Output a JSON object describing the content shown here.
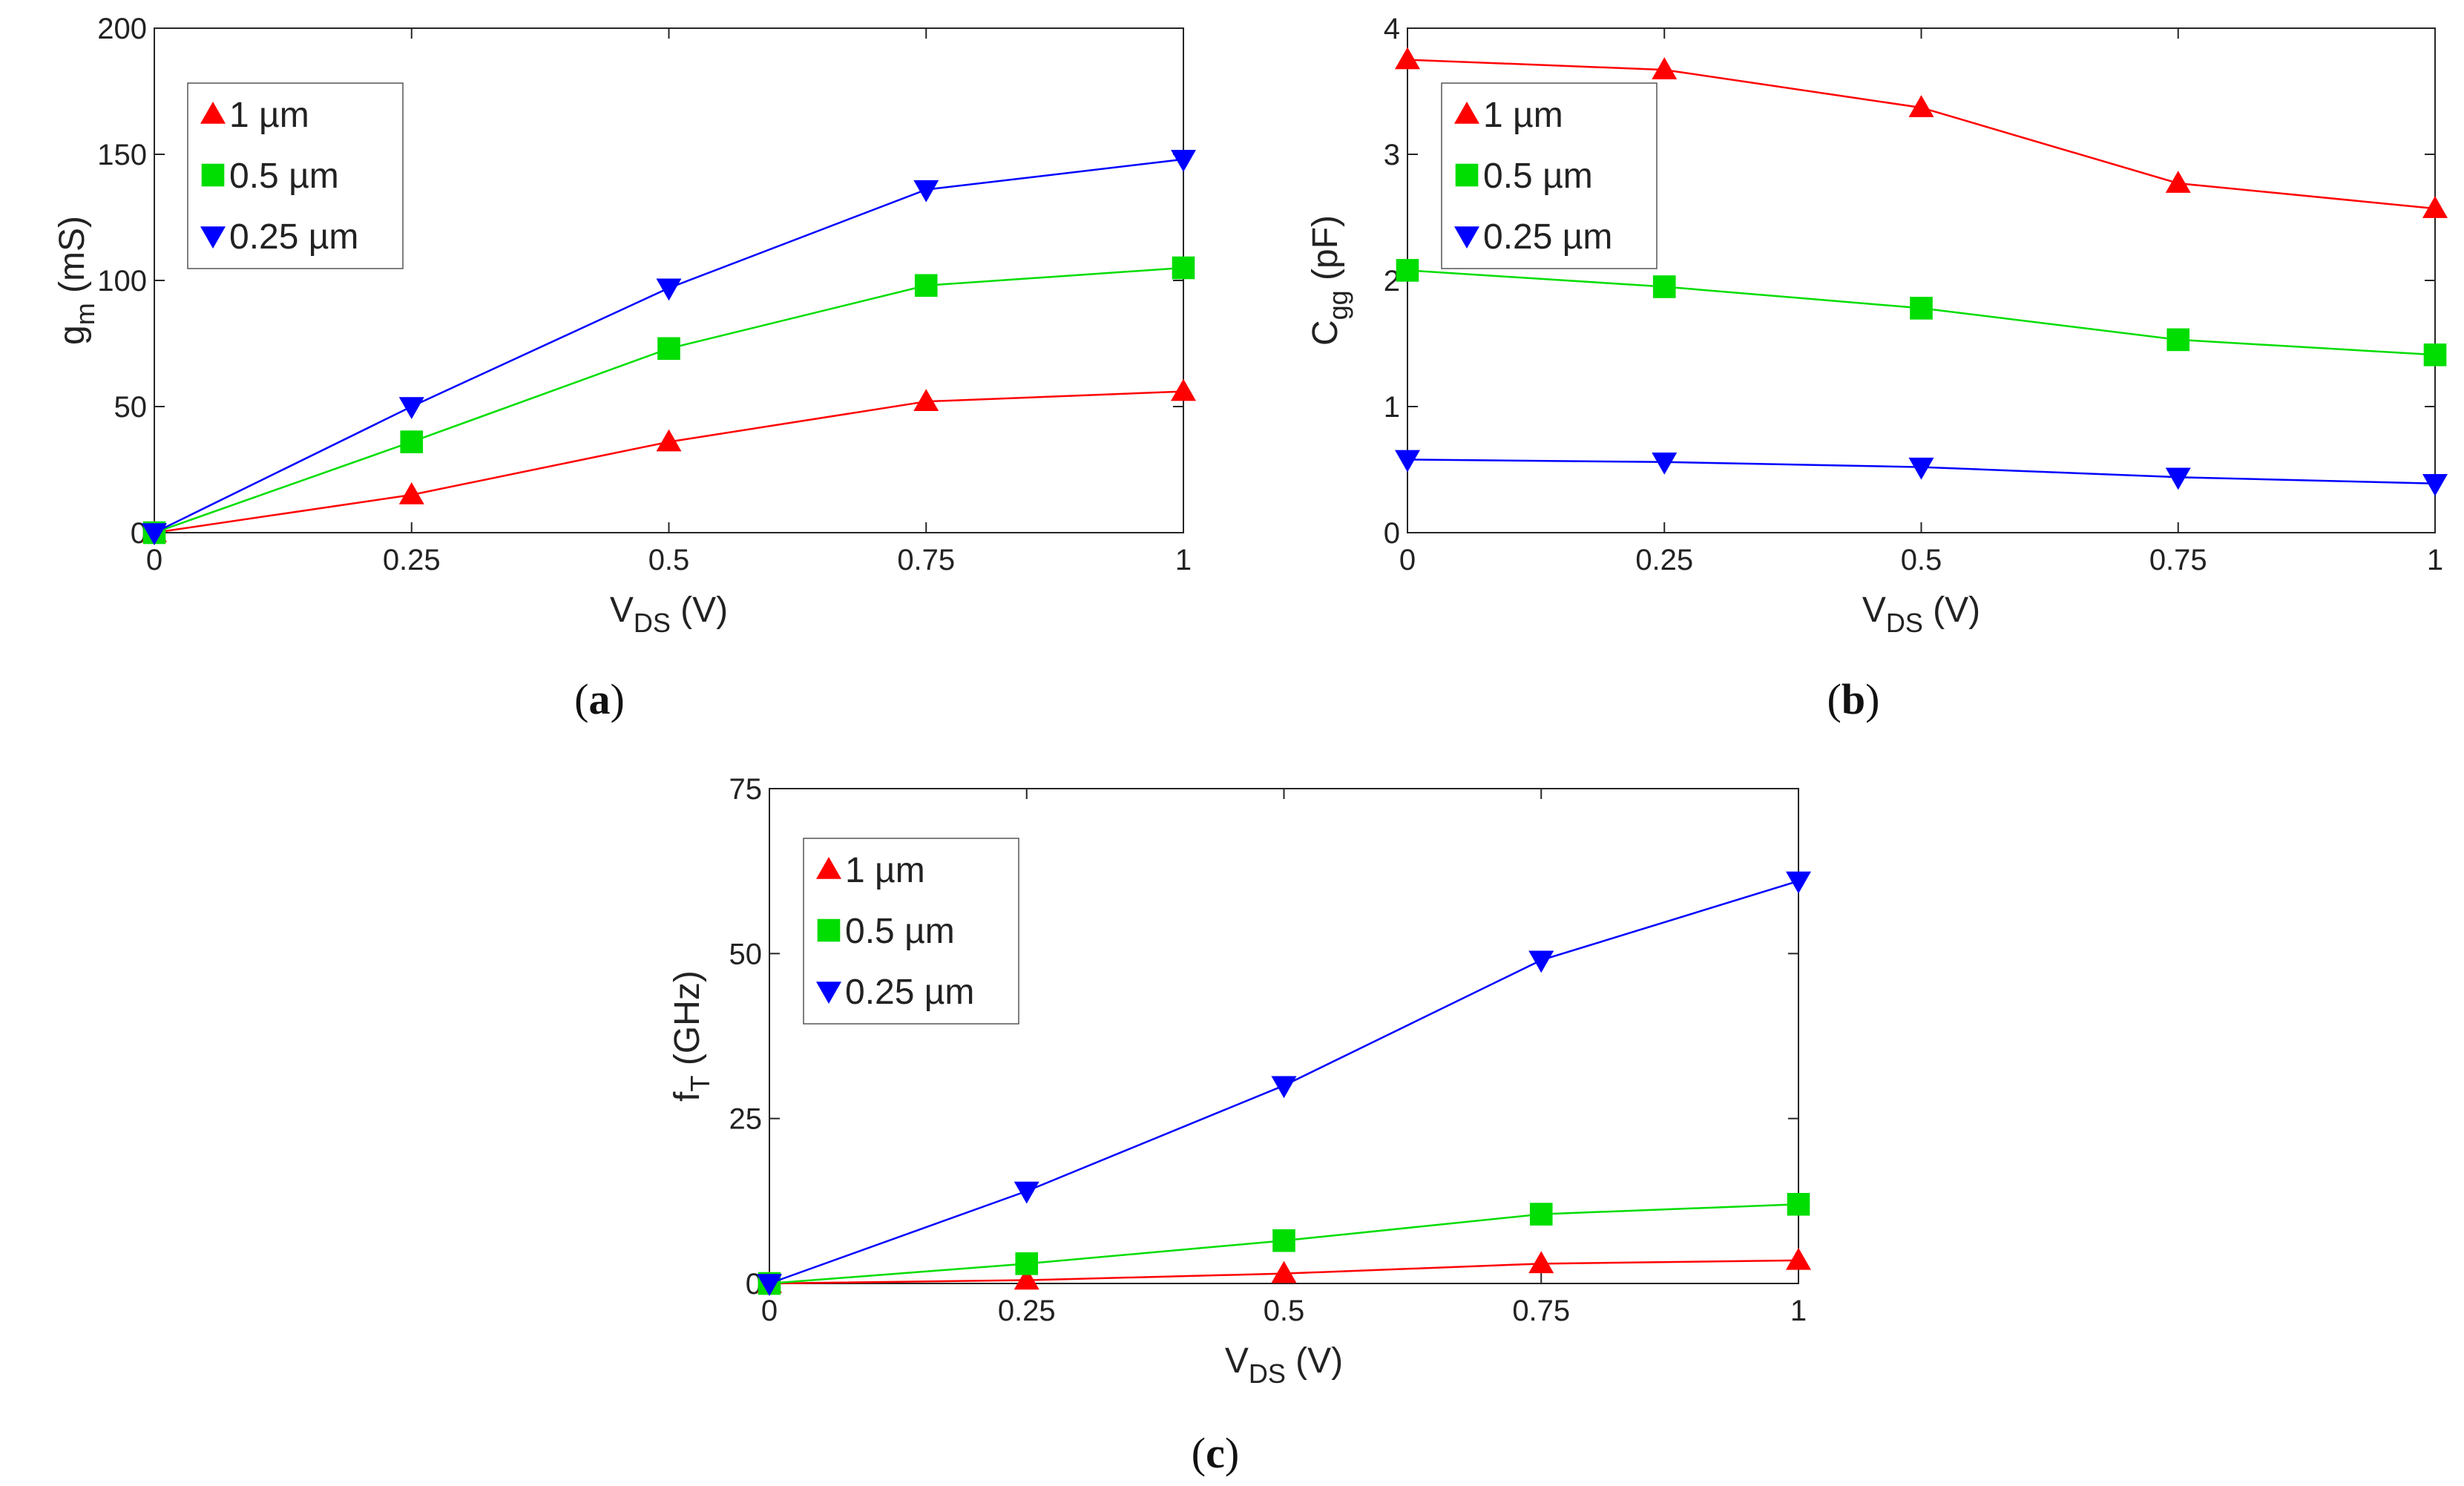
{
  "chart_data": [
    {
      "type": "line",
      "panel": "a",
      "panel_label": "a",
      "ylabel": "g",
      "ylabel_sub": "m",
      "ylabel_unit": " (mS)",
      "xlabel": "V",
      "xlabel_sub": "DS",
      "xlabel_unit": " (V)",
      "xlim": [
        0,
        1
      ],
      "ylim": [
        0,
        200
      ],
      "x_ticks": [
        0,
        0.25,
        0.5,
        0.75,
        1
      ],
      "x_tick_labels": [
        "0",
        "0.25",
        "0.5",
        "0.75",
        "1"
      ],
      "y_ticks": [
        0,
        50,
        100,
        150,
        200
      ],
      "y_tick_labels": [
        "0",
        "50",
        "100",
        "150",
        "200"
      ],
      "x": [
        0,
        0.25,
        0.5,
        0.75,
        1
      ],
      "legend_position": "top-left",
      "series": [
        {
          "name": "1 µm",
          "values": [
            0,
            15,
            36,
            52,
            56
          ]
        },
        {
          "name": "0.5 µm",
          "values": [
            0,
            36,
            73,
            98,
            105
          ]
        },
        {
          "name": "0.25 µm",
          "values": [
            0,
            50,
            97,
            136,
            148
          ]
        }
      ]
    },
    {
      "type": "line",
      "panel": "b",
      "panel_label": "b",
      "ylabel": "C",
      "ylabel_sub": "gg",
      "ylabel_unit": " (pF)",
      "xlabel": "V",
      "xlabel_sub": "DS",
      "xlabel_unit": " (V)",
      "xlim": [
        0,
        1
      ],
      "ylim": [
        0,
        4
      ],
      "x_ticks": [
        0,
        0.25,
        0.5,
        0.75,
        1
      ],
      "x_tick_labels": [
        "0",
        "0.25",
        "0.5",
        "0.75",
        "1"
      ],
      "y_ticks": [
        0,
        1,
        2,
        3,
        4
      ],
      "y_tick_labels": [
        "0",
        "1",
        "2",
        "3",
        "4"
      ],
      "x": [
        0,
        0.25,
        0.5,
        0.75,
        1
      ],
      "legend_position": "top-left",
      "series": [
        {
          "name": "1 µm",
          "values": [
            3.75,
            3.67,
            3.37,
            2.77,
            2.57
          ]
        },
        {
          "name": "0.5 µm",
          "values": [
            2.08,
            1.95,
            1.78,
            1.53,
            1.41
          ]
        },
        {
          "name": "0.25 µm",
          "values": [
            0.58,
            0.56,
            0.52,
            0.44,
            0.39
          ]
        }
      ]
    },
    {
      "type": "line",
      "panel": "c",
      "panel_label": "c",
      "ylabel": "f",
      "ylabel_sub": "T",
      "ylabel_unit": " (GHz)",
      "xlabel": "V",
      "xlabel_sub": "DS",
      "xlabel_unit": " (V)",
      "xlim": [
        0,
        1
      ],
      "ylim": [
        0,
        75
      ],
      "x_ticks": [
        0,
        0.25,
        0.5,
        0.75,
        1
      ],
      "x_tick_labels": [
        "0",
        "0.25",
        "0.5",
        "0.75",
        "1"
      ],
      "y_ticks": [
        0,
        25,
        50,
        75
      ],
      "y_tick_labels": [
        "0",
        "25",
        "50",
        "75"
      ],
      "x": [
        0,
        0.25,
        0.5,
        0.75,
        1
      ],
      "legend_position": "top-left",
      "series": [
        {
          "name": "1 µm",
          "values": [
            0,
            0.5,
            1.5,
            3,
            3.5
          ]
        },
        {
          "name": "0.5 µm",
          "values": [
            0,
            3,
            6.5,
            10.5,
            12
          ]
        },
        {
          "name": "0.25 µm",
          "values": [
            0,
            14,
            30,
            49,
            61
          ]
        }
      ]
    }
  ],
  "series_styles": [
    {
      "color": "#ff0000",
      "marker": "triangle-up"
    },
    {
      "color": "#00dd00",
      "marker": "square"
    },
    {
      "color": "#0000ff",
      "marker": "triangle-down"
    }
  ]
}
